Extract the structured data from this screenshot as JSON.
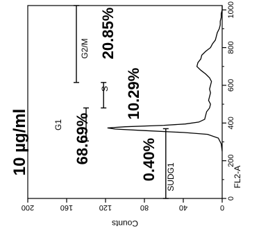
{
  "dose_label": "10 µg/ml",
  "chart_data": {
    "type": "line",
    "xlabel": "FL2-A",
    "ylabel": "Counts",
    "xlim": [
      0,
      1023
    ],
    "ylim": [
      0,
      200
    ],
    "x_ticks": [
      "0",
      "200",
      "400",
      "600",
      "800",
      "1000"
    ],
    "y_ticks": [
      "0",
      "40",
      "80",
      "120",
      "160",
      "200"
    ],
    "series": [
      {
        "x": [
          250,
          290,
          320,
          340,
          350,
          360,
          368,
          374,
          380,
          388,
          395,
          405,
          420,
          440,
          460,
          480,
          500,
          520,
          540,
          560,
          580,
          600,
          620,
          640,
          660,
          680,
          700,
          720,
          740,
          760,
          780,
          800,
          820,
          840,
          860,
          880,
          900,
          920,
          940,
          960,
          980,
          1000,
          1023
        ],
        "y": [
          0,
          1,
          4,
          15,
          40,
          80,
          110,
          118,
          100,
          60,
          38,
          24,
          18,
          17,
          16,
          13,
          12,
          14,
          13,
          12,
          13,
          12,
          11,
          13,
          17,
          22,
          26,
          25,
          22,
          21,
          17,
          12,
          10,
          7,
          6,
          5,
          3,
          2,
          2,
          1,
          1,
          0,
          0
        ]
      }
    ],
    "gates": [
      {
        "name": "SUDG1",
        "range": [
          0,
          370
        ],
        "level": 58,
        "percent": "0.40%"
      },
      {
        "name": "G1",
        "range": [
          305,
          480
        ],
        "level": 140,
        "percent": "68.69%"
      },
      {
        "name": "S",
        "range": [
          480,
          615
        ],
        "level": 122,
        "percent": "10.29%"
      },
      {
        "name": "G2/M",
        "range": [
          615,
          1023
        ],
        "level": 150,
        "percent": "20.85%"
      }
    ]
  }
}
